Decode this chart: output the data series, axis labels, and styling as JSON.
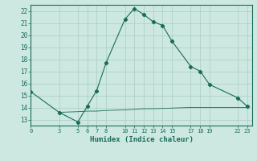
{
  "xlabel": "Humidex (Indice chaleur)",
  "bg_color": "#cce8e0",
  "grid_color": "#aaccc4",
  "line_color": "#1a6b5a",
  "xticks": [
    0,
    3,
    5,
    6,
    7,
    8,
    10,
    11,
    12,
    13,
    14,
    15,
    17,
    18,
    19,
    22,
    23
  ],
  "yticks": [
    13,
    14,
    15,
    16,
    17,
    18,
    19,
    20,
    21,
    22
  ],
  "xlim": [
    0,
    23.5
  ],
  "ylim": [
    12.5,
    22.5
  ],
  "series1_x": [
    0,
    3,
    5,
    6,
    7,
    8,
    10,
    11,
    12,
    13,
    14,
    15,
    17,
    18,
    19,
    22,
    23
  ],
  "series1_y": [
    15.3,
    13.6,
    12.8,
    14.1,
    15.4,
    17.7,
    21.3,
    22.2,
    21.7,
    21.1,
    20.8,
    19.5,
    17.4,
    17.0,
    15.9,
    14.8,
    14.1
  ],
  "series2_x": [
    3,
    5,
    6,
    7,
    8,
    10,
    11,
    12,
    13,
    14,
    15,
    17,
    18,
    19,
    22,
    23
  ],
  "series2_y": [
    13.6,
    13.65,
    13.7,
    13.7,
    13.75,
    13.8,
    13.85,
    13.9,
    13.9,
    13.92,
    13.95,
    14.0,
    14.0,
    14.0,
    14.0,
    14.0
  ]
}
